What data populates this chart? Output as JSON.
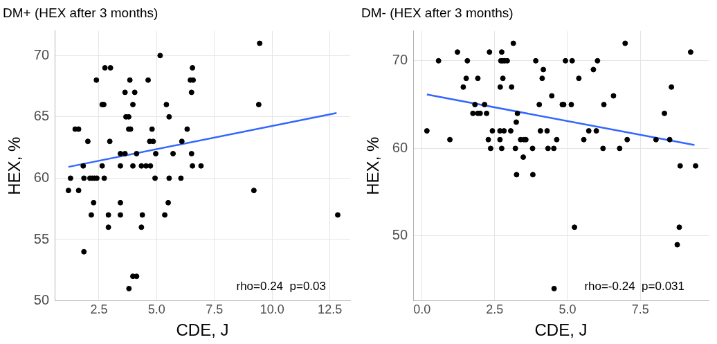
{
  "chart_data": [
    {
      "type": "scatter",
      "title": "DM+ (HEX after 3 months)",
      "xlabel": "CDE, J",
      "ylabel": "HEX, %",
      "annotations": [
        "rho=0.24  p=0.03"
      ],
      "xlim": [
        0.585,
        13.38
      ],
      "xticks": [
        {
          "value": 2.5,
          "label": "2.5"
        },
        {
          "value": 5,
          "label": "5.0"
        },
        {
          "value": 7.5,
          "label": "7.5"
        },
        {
          "value": 10,
          "label": "10.0"
        },
        {
          "value": 12.5,
          "label": "12.5"
        }
      ],
      "ylim": [
        50,
        72
      ],
      "yticks": [
        50,
        55,
        60,
        65,
        70
      ],
      "grid": true,
      "legend": false,
      "series": [
        {
          "marker": "circle",
          "color": "#000000",
          "x": [
            9.46,
            5.15,
            2.76,
            3.0,
            6.55,
            2.39,
            3.84,
            4.63,
            6.46,
            6.58,
            3.63,
            4.05,
            6.51,
            2.64,
            2.71,
            3.97,
            5.42,
            9.42,
            3.67,
            3.79,
            5.54,
            1.47,
            1.62,
            3.79,
            3.87,
            4.8,
            6.32,
            2.02,
            2.97,
            4.7,
            4.85,
            6.09,
            3.43,
            3.63,
            4.13,
            4.96,
            5.71,
            6.51,
            1.82,
            2.64,
            3.43,
            3.97,
            4.34,
            4.54,
            4.73,
            6.55,
            6.92,
            1.27,
            1.85,
            2.11,
            2.21,
            2.31,
            2.41,
            2.73,
            4.93,
            5.54,
            6.05,
            1.18,
            1.62,
            9.21,
            2.27,
            3.43,
            5.5,
            2.17,
            2.91,
            3.43,
            4.38,
            5.35,
            12.84,
            2.91,
            4.34,
            1.85,
            3.97,
            4.13,
            3.8
          ],
          "values": [
            71,
            70,
            69,
            69,
            69,
            68,
            68,
            68,
            68,
            68,
            67,
            67,
            67,
            66,
            66,
            66,
            66,
            66,
            65,
            65,
            65,
            64,
            64,
            64,
            64,
            64,
            64,
            63,
            63,
            63,
            63,
            63,
            62,
            62,
            62,
            62,
            62,
            62,
            61,
            61,
            61,
            61,
            61,
            61,
            61,
            61,
            61,
            60,
            60,
            60,
            60,
            60,
            60,
            60,
            60,
            60,
            60,
            59,
            59,
            59,
            58,
            58,
            58,
            57,
            57,
            57,
            57,
            57,
            57,
            56,
            56,
            54,
            52,
            52,
            51
          ]
        },
        {
          "type": "line",
          "marker": "none",
          "color": "#3366ff",
          "x": [
            1.18,
            12.79
          ],
          "values": [
            60.92,
            65.32
          ]
        }
      ]
    },
    {
      "type": "scatter",
      "title": "DM- (HEX after 3 months)",
      "xlabel": "CDE, J",
      "ylabel": "HEX, %",
      "annotations": [
        "rho=-0.24  p=0.031"
      ],
      "xlim": [
        -0.3,
        9.85
      ],
      "xticks": [
        {
          "value": 0,
          "label": "0.0"
        },
        {
          "value": 2.5,
          "label": "2.5"
        },
        {
          "value": 5,
          "label": "5.0"
        },
        {
          "value": 7.5,
          "label": "7.5"
        }
      ],
      "ylim": [
        42.6,
        73.4
      ],
      "yticks": [
        50,
        60,
        70
      ],
      "grid": true,
      "legend": false,
      "series": [
        {
          "marker": "circle",
          "color": "#000000",
          "x": [
            3.14,
            6.98,
            1.22,
            2.32,
            2.74,
            9.23,
            0.57,
            1.56,
            2.71,
            2.77,
            2.84,
            2.93,
            3.91,
            4.93,
            5.16,
            6.03,
            4.17,
            5.89,
            1.52,
            1.92,
            2.78,
            4.13,
            5.39,
            1.42,
            2.69,
            3.08,
            8.57,
            4.46,
            6.58,
            1.82,
            2.15,
            4.03,
            4.82,
            4.87,
            5.13,
            6.25,
            1.75,
            1.92,
            2.0,
            2.22,
            3.28,
            8.33,
            3.24,
            0.17,
            2.42,
            2.68,
            2.82,
            3.05,
            4.07,
            4.3,
            5.73,
            5.99,
            0.96,
            2.28,
            2.68,
            3.39,
            3.5,
            3.57,
            4.63,
            5.56,
            7.05,
            8.04,
            8.51,
            2.36,
            2.74,
            3.21,
            3.8,
            4.33,
            4.53,
            6.22,
            6.79,
            3.48,
            8.87,
            9.4,
            3.25,
            3.81,
            5.24,
            8.84,
            8.77,
            4.54
          ],
          "values": [
            72,
            72,
            71,
            71,
            71,
            71,
            70,
            70,
            70,
            70,
            70,
            70,
            70,
            70,
            70,
            70,
            69,
            69,
            68,
            68,
            68,
            68,
            68,
            67,
            67,
            67,
            67,
            66,
            66,
            65,
            65,
            65,
            65,
            65,
            65,
            65,
            64,
            64,
            64,
            64,
            64,
            64,
            63,
            62,
            62,
            62,
            62,
            62,
            62,
            62,
            62,
            62,
            61,
            61,
            61,
            61,
            61,
            61,
            61,
            61,
            61,
            61,
            61,
            60,
            60,
            60,
            60,
            60,
            60,
            60,
            60,
            59,
            58,
            58,
            57,
            57,
            51,
            51,
            49,
            44
          ]
        },
        {
          "type": "line",
          "marker": "none",
          "color": "#3366ff",
          "x": [
            0.17,
            9.36
          ],
          "values": [
            66.15,
            60.38
          ]
        }
      ]
    }
  ]
}
